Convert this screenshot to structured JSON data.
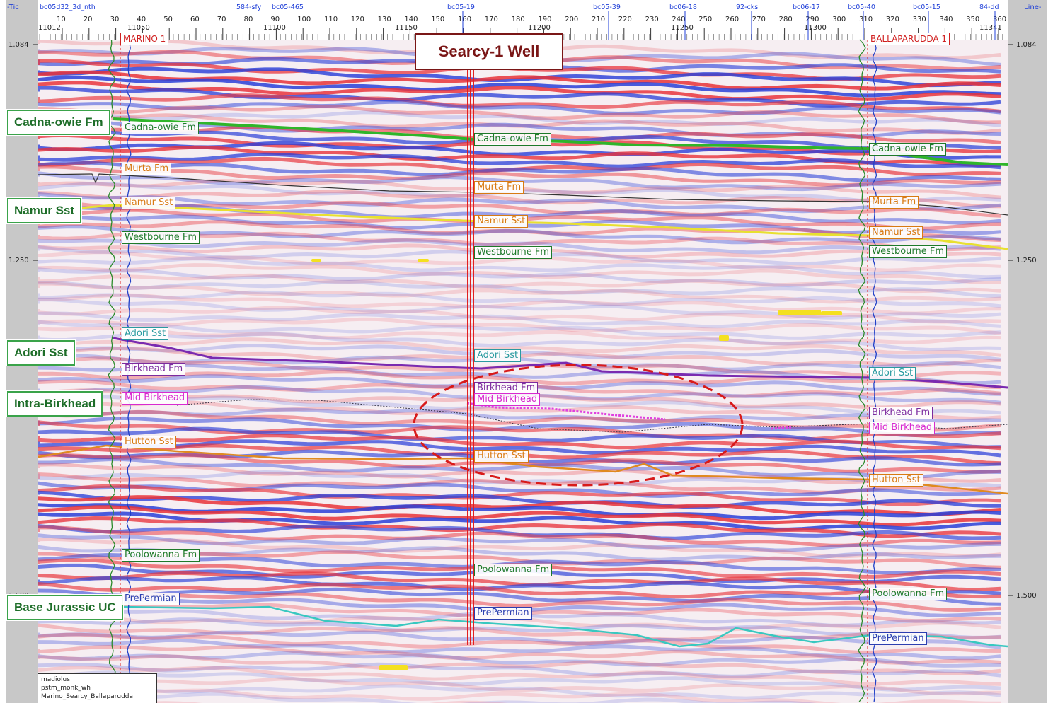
{
  "section": {
    "corner_left": "-Tic",
    "corner_right": "Line-",
    "top_row_labels": [
      "bc05-19",
      "bc05-39",
      "bc06-18",
      "92-cks",
      "bc06-17",
      "bc05-40",
      "bc05-15",
      "84-dd"
    ],
    "top_row_labels_left": [
      "bc05d32_3d_nth",
      "584-sfy",
      "bc05-465"
    ],
    "trace_ticks": [
      "10",
      "20",
      "30",
      "40",
      "50",
      "60",
      "70",
      "80",
      "90",
      "100",
      "110",
      "120",
      "130",
      "140",
      "150",
      "160",
      "170",
      "180",
      "190",
      "200",
      "210",
      "220",
      "230",
      "240",
      "250",
      "260",
      "270",
      "280",
      "290",
      "300",
      "310",
      "320",
      "330",
      "340",
      "350",
      "360"
    ],
    "cdp_ticks": [
      "11012",
      "11050",
      "11100",
      "11150",
      "11200",
      "11250",
      "11300",
      "11341"
    ],
    "time_labels": [
      "1.084",
      "1.250",
      "1.500"
    ],
    "time_labels_right": [
      "1.084",
      "1.250",
      "1.500"
    ]
  },
  "title": "Searcy-1 Well",
  "wells": {
    "left": "MARINO 1",
    "right": "BALLAPARUDDA 1"
  },
  "side_labels": [
    "Cadna-owie Fm",
    "Namur Sst",
    "Adori Sst",
    "Intra-Birkhead",
    "Base Jurassic UC"
  ],
  "horizon_labels": {
    "left": [
      "Cadna-owie Fm",
      "Murta Fm",
      "Namur Sst",
      "Westbourne Fm",
      "Adori Sst",
      "Birkhead Fm",
      "Mid Birkhead",
      "Hutton Sst",
      "Poolowanna Fm",
      "PrePermian"
    ],
    "center": [
      "Cadna-owie Fm",
      "Murta Fm",
      "Namur Sst",
      "Westbourne Fm",
      "Adori Sst",
      "Birkhead Fm",
      "Mid Birkhead",
      "Hutton Sst",
      "Poolowanna Fm",
      "PrePermian"
    ],
    "right": [
      "Cadna-owie Fm",
      "Murta Fm",
      "Namur Sst",
      "Westbourne Fm",
      "Adori Sst",
      "Birkhead Fm",
      "Mid Birkhead",
      "Hutton Sst",
      "Poolowanna Fm",
      "PrePermian"
    ]
  },
  "legend": [
    "madiolus",
    "pstm_monk_wh",
    "Marino_Searcy_Ballaparudda"
  ],
  "colors": {
    "positive": "#e8323a",
    "negative": "#2a3fd8",
    "cadna_owie": "#2fb52a",
    "namur": "#e8e030",
    "adori_birkhead": "#7a2ab0",
    "hutton": "#e08a20",
    "prepermian": "#38c8c0",
    "well_marker": "#e02020",
    "ellipse": "#d81a1a"
  }
}
